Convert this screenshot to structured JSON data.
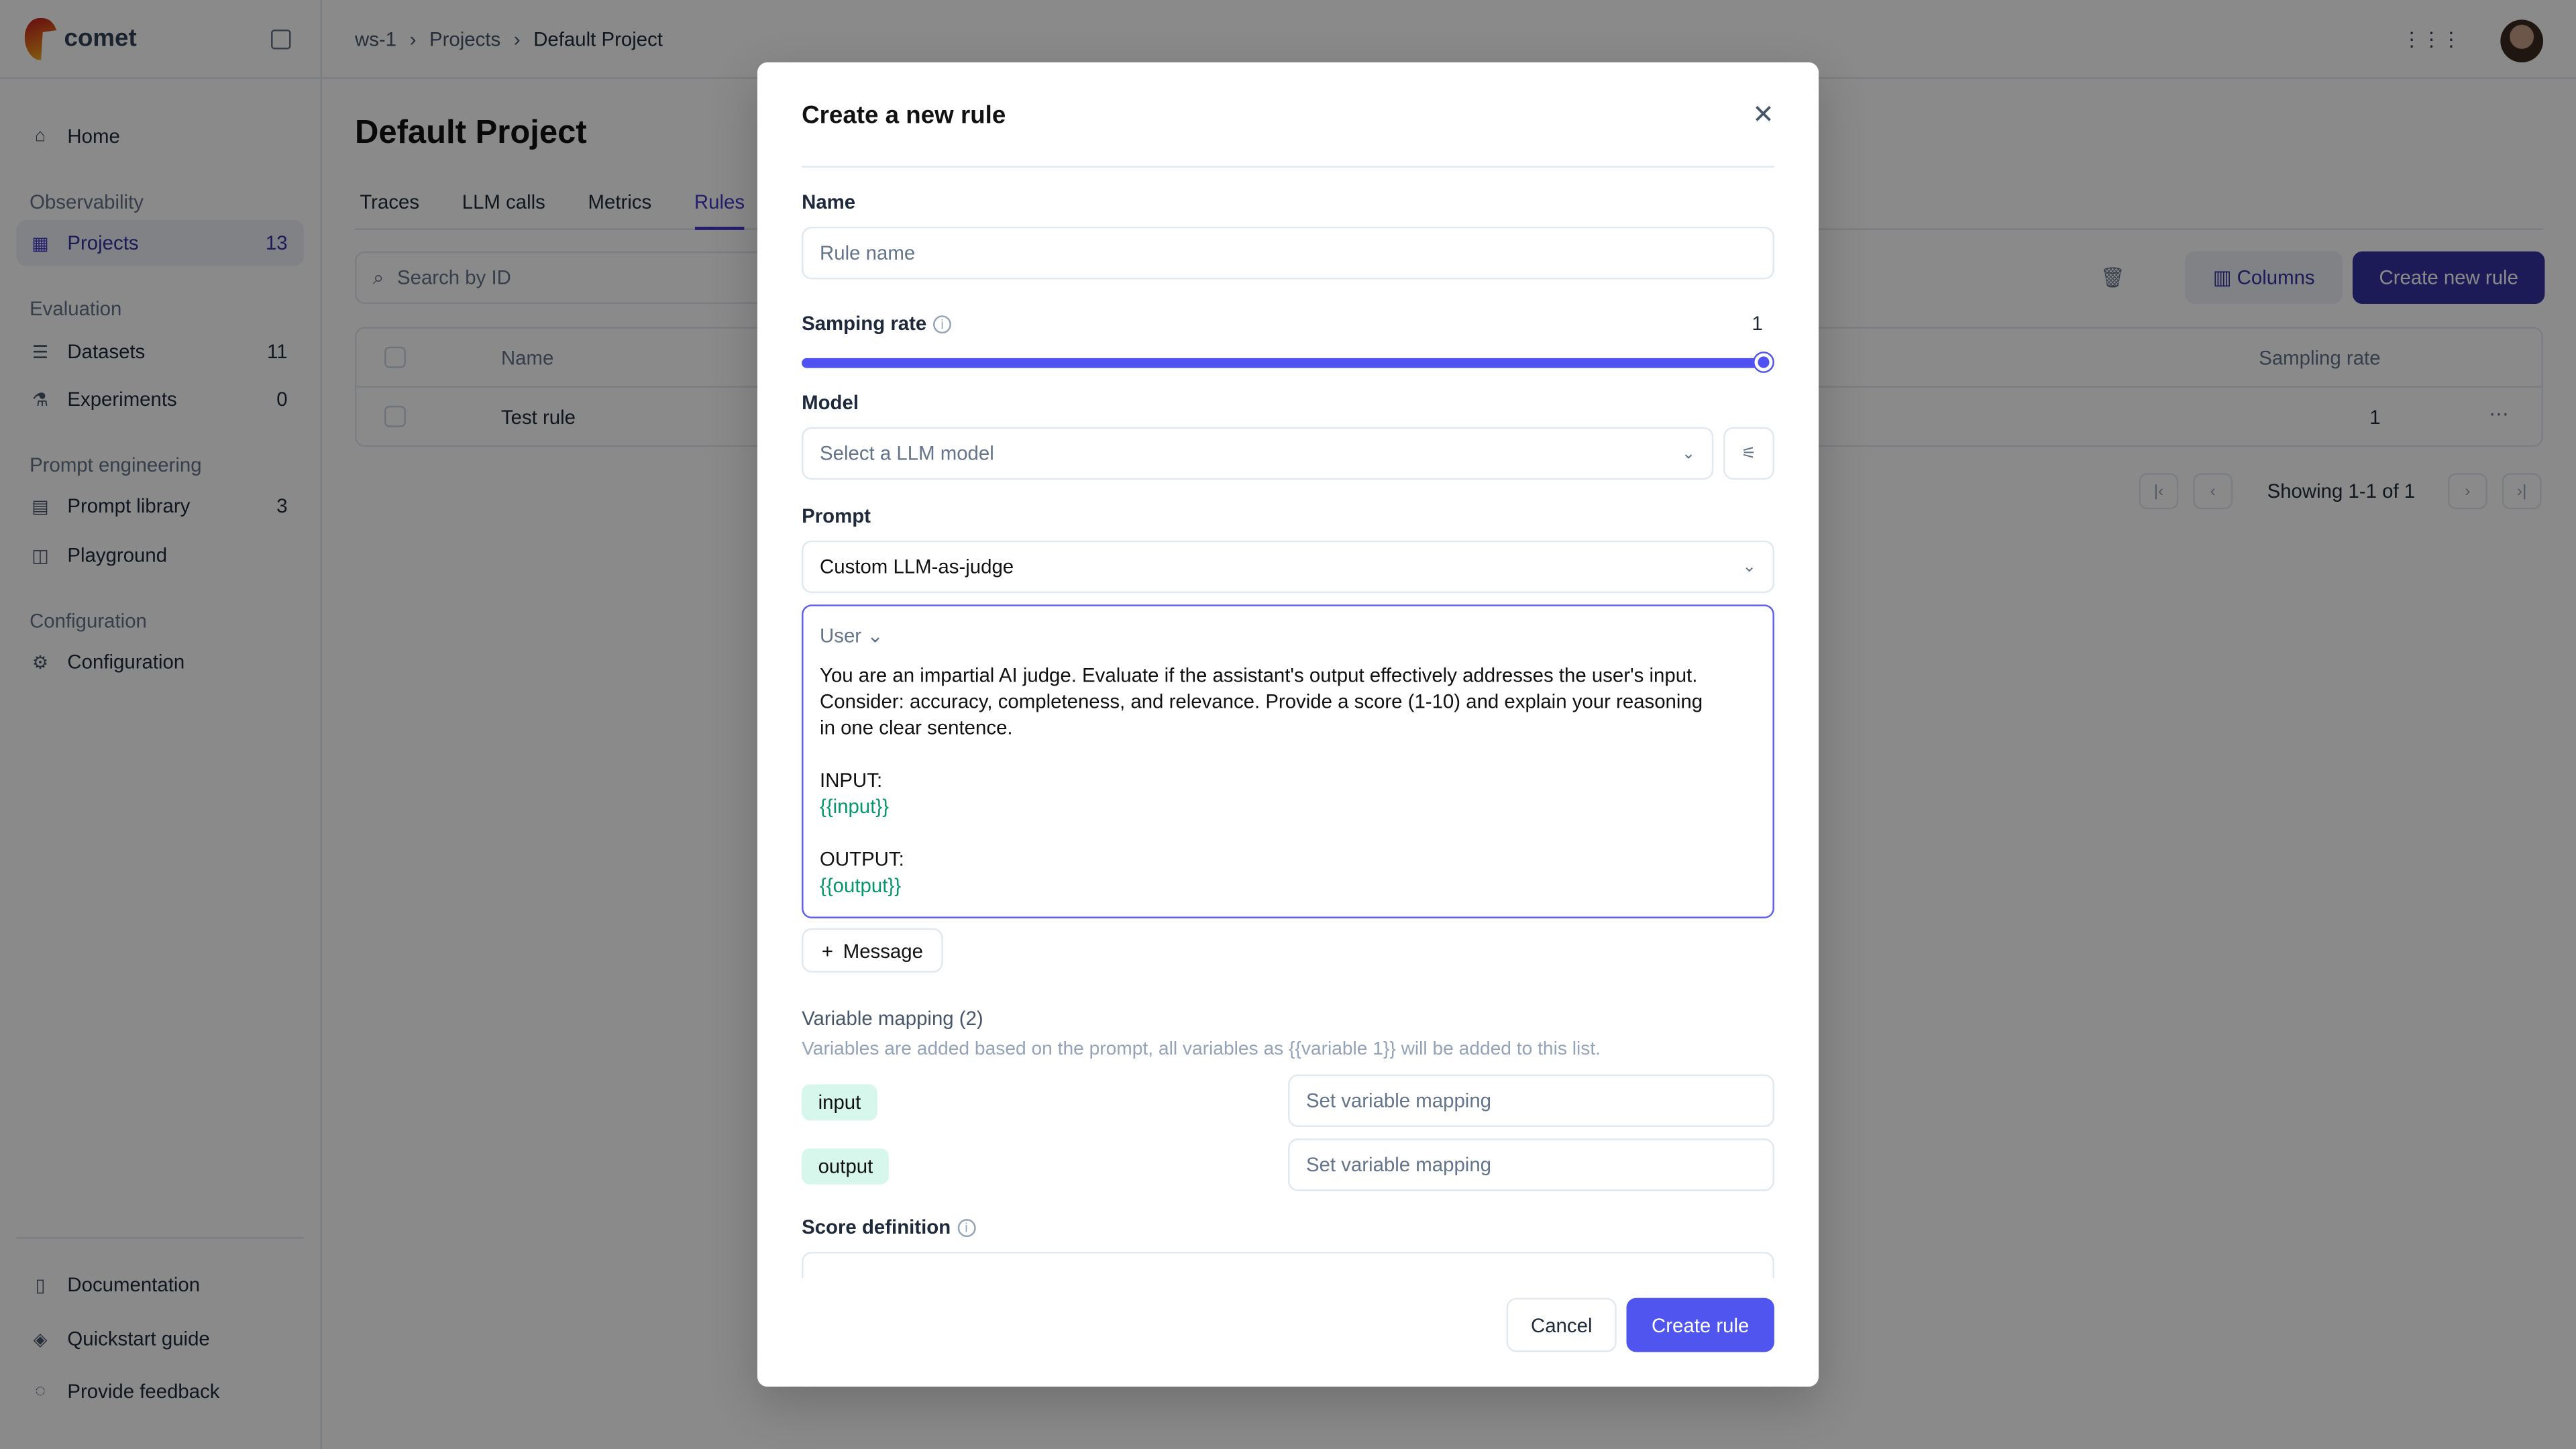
{
  "app": {
    "brand": "comet"
  },
  "breadcrumb": [
    "ws-1",
    "Projects",
    "Default Project"
  ],
  "sidebar": {
    "home": "Home",
    "sections": [
      {
        "title": "Observability",
        "items": [
          {
            "label": "Projects",
            "count": "13"
          }
        ]
      },
      {
        "title": "Evaluation",
        "items": [
          {
            "label": "Datasets",
            "count": "11"
          },
          {
            "label": "Experiments",
            "count": "0"
          }
        ]
      },
      {
        "title": "Prompt engineering",
        "items": [
          {
            "label": "Prompt library",
            "count": "3"
          },
          {
            "label": "Playground",
            "count": ""
          }
        ]
      },
      {
        "title": "Configuration",
        "items": [
          {
            "label": "Configuration",
            "count": ""
          }
        ]
      }
    ],
    "footer": [
      "Documentation",
      "Quickstart guide",
      "Provide feedback"
    ]
  },
  "page": {
    "title": "Default Project",
    "tabs": [
      "Traces",
      "LLM calls",
      "Metrics",
      "Rules"
    ],
    "active_tab": "Rules",
    "search_placeholder": "Search by ID",
    "columns_label": "Columns",
    "create_label": "Create new rule",
    "table": {
      "headers": [
        "Name",
        "Sampling rate"
      ],
      "rows": [
        {
          "name": "Test rule",
          "rate": "1"
        }
      ]
    },
    "pagination": "Showing 1-1 of 1"
  },
  "modal": {
    "title": "Create a new rule",
    "name_label": "Name",
    "name_placeholder": "Rule name",
    "sampling_label": "Samping rate",
    "sampling_value": "1",
    "sampling_fraction": 1,
    "model_label": "Model",
    "model_placeholder": "Select a LLM model",
    "prompt_label": "Prompt",
    "prompt_value": "Custom LLM-as-judge",
    "message_role": "User",
    "message_lines": [
      "You are an impartial AI judge. Evaluate if the assistant's output effectively addresses the user's input.",
      "Consider: accuracy, completeness, and relevance. Provide a score (1-10) and explain your reasoning",
      "in one clear sentence."
    ],
    "input_label": "INPUT:",
    "input_var": "{{input}}",
    "output_label": "OUTPUT:",
    "output_var": "{{output}}",
    "add_message": "Message",
    "var_mapping_title": "Variable mapping (2)",
    "var_mapping_desc": "Variables are added based on the prompt, all variables as {{variable 1}} will be added to this list.",
    "variables": [
      {
        "name": "input",
        "placeholder": "Set variable mapping"
      },
      {
        "name": "output",
        "placeholder": "Set variable mapping"
      }
    ],
    "score_label": "Score definition",
    "cancel": "Cancel",
    "submit": "Create rule",
    "accent": "#5155f0"
  }
}
